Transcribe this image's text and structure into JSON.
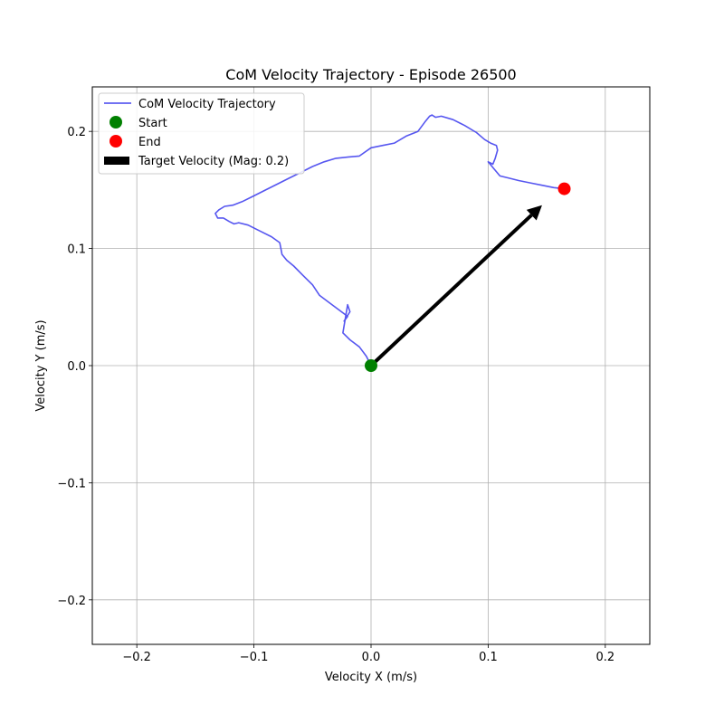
{
  "chart_data": {
    "type": "line",
    "title": "CoM Velocity Trajectory - Episode 26500",
    "xlabel": "Velocity X (m/s)",
    "ylabel": "Velocity Y (m/s)",
    "xlim": [
      -0.238,
      0.238
    ],
    "ylim": [
      -0.238,
      0.238
    ],
    "grid": true,
    "legend_position": "top-left",
    "xticks": [
      -0.2,
      -0.1,
      0.0,
      0.1,
      0.2
    ],
    "xtick_labels": [
      "−0.2",
      "−0.1",
      "0.0",
      "0.1",
      "0.2"
    ],
    "yticks": [
      -0.2,
      -0.1,
      0.0,
      0.1,
      0.2
    ],
    "ytick_labels": [
      "−0.2",
      "−0.1",
      "0.0",
      "0.1",
      "0.2"
    ],
    "series": [
      {
        "name": "CoM Velocity Trajectory",
        "color": "#4444ee",
        "x": [
          0.0,
          -0.004,
          -0.01,
          -0.018,
          -0.024,
          -0.022,
          -0.02,
          -0.018,
          -0.023,
          -0.02,
          -0.028,
          -0.036,
          -0.044,
          -0.05,
          -0.058,
          -0.066,
          -0.072,
          -0.076,
          -0.077,
          -0.078,
          -0.085,
          -0.095,
          -0.105,
          -0.113,
          -0.117,
          -0.121,
          -0.126,
          -0.131,
          -0.133,
          -0.13,
          -0.125,
          -0.118,
          -0.11,
          -0.1,
          -0.09,
          -0.08,
          -0.07,
          -0.06,
          -0.05,
          -0.04,
          -0.03,
          -0.02,
          -0.01,
          0.0,
          0.01,
          0.02,
          0.03,
          0.04,
          0.046,
          0.05,
          0.052,
          0.055,
          0.06,
          0.07,
          0.08,
          0.09,
          0.097,
          0.102,
          0.107,
          0.108,
          0.106,
          0.104,
          0.1,
          0.105,
          0.11,
          0.118,
          0.126,
          0.136,
          0.146,
          0.156,
          0.165
        ],
        "y": [
          0.0,
          0.008,
          0.016,
          0.022,
          0.028,
          0.04,
          0.052,
          0.046,
          0.038,
          0.042,
          0.048,
          0.054,
          0.06,
          0.069,
          0.077,
          0.085,
          0.09,
          0.095,
          0.1,
          0.105,
          0.11,
          0.115,
          0.12,
          0.122,
          0.121,
          0.123,
          0.126,
          0.126,
          0.13,
          0.133,
          0.136,
          0.137,
          0.14,
          0.145,
          0.15,
          0.155,
          0.16,
          0.165,
          0.17,
          0.174,
          0.177,
          0.178,
          0.179,
          0.186,
          0.188,
          0.19,
          0.196,
          0.2,
          0.208,
          0.213,
          0.214,
          0.212,
          0.213,
          0.21,
          0.205,
          0.199,
          0.193,
          0.19,
          0.188,
          0.184,
          0.177,
          0.172,
          0.174,
          0.168,
          0.162,
          0.16,
          0.158,
          0.156,
          0.154,
          0.152,
          0.151
        ]
      },
      {
        "name": "Start",
        "type": "scatter",
        "color": "#008000",
        "x": [
          0.0
        ],
        "y": [
          0.0
        ]
      },
      {
        "name": "End",
        "type": "scatter",
        "color": "#ff0000",
        "x": [
          0.165
        ],
        "y": [
          0.151
        ]
      }
    ],
    "arrow": {
      "name": "Target Velocity (Mag: 0.2)",
      "color": "#000000",
      "x0": 0.0,
      "y0": 0.0,
      "dx": 0.146,
      "dy": 0.137
    }
  }
}
